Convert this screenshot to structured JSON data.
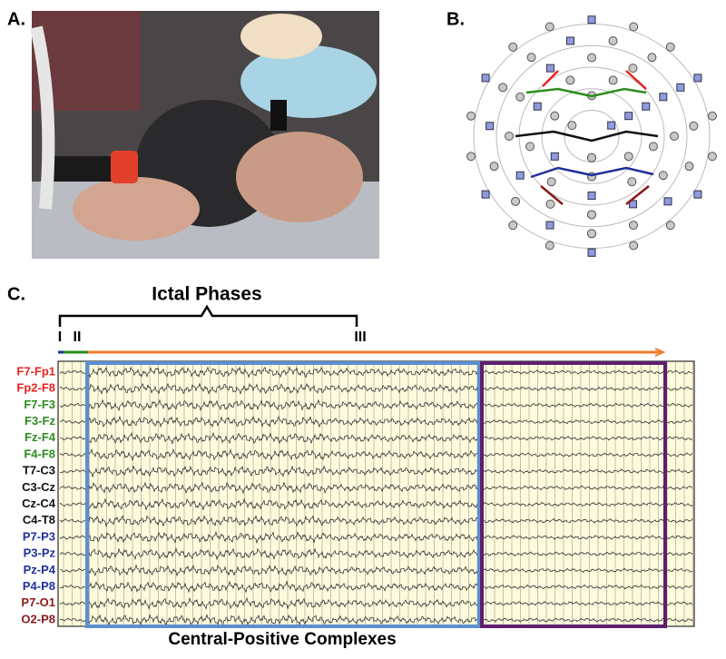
{
  "panels": {
    "a": {
      "label": "A."
    },
    "b": {
      "label": "B."
    },
    "c": {
      "label": "C.",
      "title": "Ictal Phases",
      "phases": [
        "I",
        "II",
        "III"
      ],
      "channels": [
        {
          "name": "F7-Fp1",
          "color": "#e8231f"
        },
        {
          "name": "Fp2-F8",
          "color": "#e8231f"
        },
        {
          "name": "F7-F3",
          "color": "#2e8b1f"
        },
        {
          "name": "F3-Fz",
          "color": "#2e8b1f"
        },
        {
          "name": "Fz-F4",
          "color": "#2e8b1f"
        },
        {
          "name": "F4-F8",
          "color": "#2e8b1f"
        },
        {
          "name": "T7-C3",
          "color": "#111111"
        },
        {
          "name": "C3-Cz",
          "color": "#111111"
        },
        {
          "name": "Cz-C4",
          "color": "#111111"
        },
        {
          "name": "C4-T8",
          "color": "#111111"
        },
        {
          "name": "P7-P3",
          "color": "#1f2f9c"
        },
        {
          "name": "P3-Pz",
          "color": "#1f2f9c"
        },
        {
          "name": "Pz-P4",
          "color": "#1f2f9c"
        },
        {
          "name": "P4-P8",
          "color": "#1f2f9c"
        },
        {
          "name": "P7-O1",
          "color": "#8b1a1a"
        },
        {
          "name": "O2-P8",
          "color": "#8b1a1a"
        }
      ],
      "annotation": "Central-Positive Complexes"
    }
  }
}
